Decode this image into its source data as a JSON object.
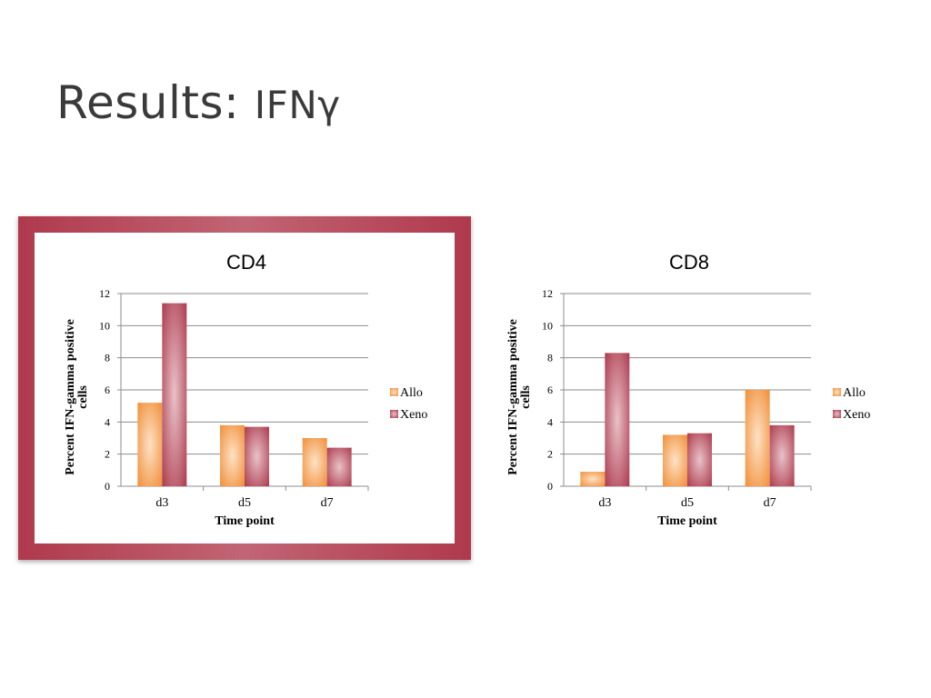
{
  "slide": {
    "title_main": "Results: ",
    "title_accent": "IFNγ"
  },
  "colors": {
    "frame": "#b03a4d",
    "allo": "#f0892e",
    "xeno": "#a83145",
    "grid": "#8c8c8c"
  },
  "chart_data": [
    {
      "id": "cd4",
      "type": "bar",
      "title": "CD4",
      "xlabel": "Time point",
      "ylabel": "Percent IFN-gamma positive cells",
      "ylabel_lines": [
        "Percent IFN-gamma positive",
        "cells"
      ],
      "categories": [
        "d3",
        "d5",
        "d7"
      ],
      "ylim": [
        0,
        12
      ],
      "yticks": [
        0,
        2,
        4,
        6,
        8,
        10,
        12
      ],
      "grid": true,
      "legend_position": "right",
      "series": [
        {
          "name": "Allo",
          "values": [
            5.2,
            3.8,
            3.0
          ]
        },
        {
          "name": "Xeno",
          "values": [
            11.4,
            3.7,
            2.4
          ]
        }
      ],
      "highlighted": true
    },
    {
      "id": "cd8",
      "type": "bar",
      "title": "CD8",
      "xlabel": "Time point",
      "ylabel": "Percent IFN-gamma positive cells",
      "ylabel_lines": [
        "Percent IFN-gamma positive",
        "cells"
      ],
      "categories": [
        "d3",
        "d5",
        "d7"
      ],
      "ylim": [
        0,
        12
      ],
      "yticks": [
        0,
        2,
        4,
        6,
        8,
        10,
        12
      ],
      "grid": true,
      "legend_position": "right",
      "series": [
        {
          "name": "Allo",
          "values": [
            0.9,
            3.2,
            6.0
          ]
        },
        {
          "name": "Xeno",
          "values": [
            8.3,
            3.3,
            3.8
          ]
        }
      ],
      "highlighted": false
    }
  ]
}
